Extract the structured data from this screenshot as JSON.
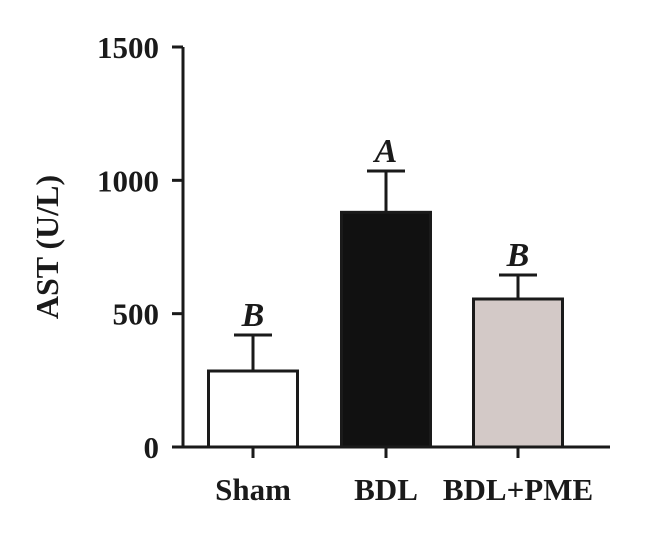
{
  "chart_data": {
    "type": "bar",
    "title": "",
    "xlabel": "",
    "ylabel": "AST (U/L)",
    "ylim": [
      0,
      1500
    ],
    "yticks": [
      0,
      500,
      1000,
      1500
    ],
    "categories": [
      "Sham",
      "BDL",
      "BDL+PME"
    ],
    "values": [
      285,
      880,
      555
    ],
    "errors": [
      135,
      155,
      90
    ],
    "significance": [
      "B",
      "A",
      "B"
    ],
    "bar_colors": [
      "#ffffff",
      "#111111",
      "#d3c9c7"
    ],
    "grid": false,
    "legend": "none"
  }
}
